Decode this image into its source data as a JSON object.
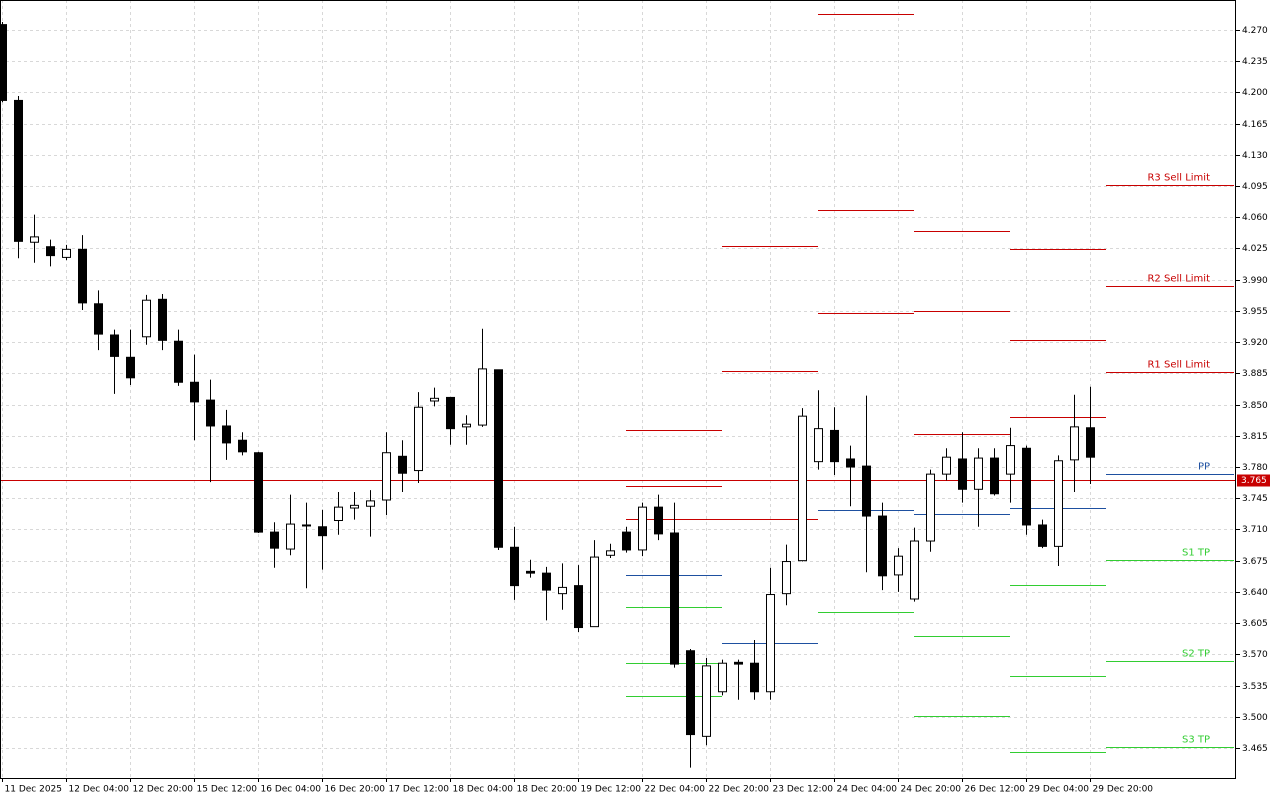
{
  "chart_data": {
    "type": "candlestick",
    "categories": [
      "11 Dec 2025",
      null,
      null,
      null,
      "12 Dec 04:00",
      null,
      null,
      null,
      "12 Dec 20:00",
      null,
      null,
      null,
      "15 Dec 12:00",
      null,
      null,
      null,
      "16 Dec 04:00",
      null,
      null,
      null,
      "16 Dec 20:00",
      null,
      null,
      null,
      "17 Dec 12:00",
      null,
      null,
      null,
      "18 Dec 04:00",
      null,
      null,
      null,
      "18 Dec 20:00",
      null,
      null,
      null,
      "19 Dec 12:00",
      null,
      null,
      null,
      "22 Dec 04:00",
      null,
      null,
      null,
      "22 Dec 20:00",
      null,
      null,
      null,
      "23 Dec 12:00",
      null,
      null,
      null,
      "24 Dec 04:00",
      null,
      null,
      null,
      "24 Dec 20:00",
      null,
      null,
      null,
      "26 Dec 12:00",
      null,
      null,
      null,
      "29 Dec 04:00",
      null,
      null,
      null,
      "29 Dec 20:00"
    ],
    "open": [
      4.276,
      4.191,
      4.032,
      4.027,
      4.015,
      4.024,
      3.963,
      3.928,
      3.903,
      3.926,
      3.968,
      3.921,
      3.875,
      3.855,
      3.826,
      3.81,
      3.796,
      3.707,
      3.688,
      3.715,
      3.713,
      3.72,
      3.734,
      3.736,
      3.743,
      3.792,
      3.776,
      3.854,
      3.858,
      3.825,
      3.827,
      3.889,
      3.69,
      3.663,
      3.661,
      3.638,
      3.647,
      3.601,
      3.681,
      3.707,
      3.687,
      3.735,
      3.706,
      3.574,
      3.478,
      3.528,
      3.561,
      3.56,
      3.528,
      3.638,
      3.675,
      3.786,
      3.821,
      3.789,
      3.781,
      3.725,
      3.659,
      3.632,
      3.697,
      3.772,
      3.789,
      3.755,
      3.79,
      3.772,
      3.801,
      3.715,
      3.691,
      3.788,
      3.824
    ],
    "high": [
      4.279,
      4.196,
      4.063,
      4.035,
      4.029,
      4.04,
      3.978,
      3.934,
      3.934,
      3.973,
      3.974,
      3.934,
      3.906,
      3.878,
      3.844,
      3.819,
      3.797,
      3.718,
      3.749,
      3.74,
      3.732,
      3.752,
      3.752,
      3.754,
      3.819,
      3.81,
      3.864,
      3.869,
      3.858,
      3.838,
      3.935,
      3.889,
      3.713,
      3.676,
      3.668,
      3.672,
      3.67,
      3.698,
      3.694,
      3.713,
      3.74,
      3.749,
      3.74,
      3.576,
      3.566,
      3.564,
      3.564,
      3.586,
      3.667,
      3.693,
      3.846,
      3.866,
      3.847,
      3.804,
      3.86,
      3.74,
      3.689,
      3.712,
      3.777,
      3.801,
      3.819,
      3.801,
      3.801,
      3.824,
      3.804,
      3.721,
      3.793,
      3.861,
      3.87
    ],
    "low": [
      4.189,
      4.014,
      4.009,
      4.005,
      4.012,
      3.956,
      3.911,
      3.862,
      3.872,
      3.917,
      3.911,
      3.871,
      3.81,
      3.763,
      3.788,
      3.793,
      3.706,
      3.667,
      3.681,
      3.644,
      3.665,
      3.704,
      3.721,
      3.702,
      3.726,
      3.752,
      3.762,
      3.848,
      3.805,
      3.805,
      3.825,
      3.687,
      3.631,
      3.656,
      3.608,
      3.62,
      3.595,
      3.601,
      3.678,
      3.684,
      3.68,
      3.698,
      3.555,
      3.443,
      3.468,
      3.524,
      3.519,
      3.519,
      3.519,
      3.625,
      3.674,
      3.777,
      3.771,
      3.736,
      3.662,
      3.642,
      3.64,
      3.629,
      3.685,
      3.765,
      3.74,
      3.713,
      3.748,
      3.74,
      3.704,
      3.689,
      3.669,
      3.752,
      3.761
    ],
    "close": [
      4.191,
      4.033,
      4.038,
      4.017,
      4.024,
      3.964,
      3.929,
      3.904,
      3.88,
      3.967,
      3.922,
      3.875,
      3.853,
      3.826,
      3.807,
      3.797,
      3.707,
      3.689,
      3.716,
      3.714,
      3.703,
      3.735,
      3.737,
      3.742,
      3.796,
      3.773,
      3.847,
      3.857,
      3.823,
      3.828,
      3.89,
      3.69,
      3.647,
      3.661,
      3.642,
      3.645,
      3.6,
      3.679,
      3.686,
      3.687,
      3.735,
      3.705,
      3.559,
      3.48,
      3.557,
      3.56,
      3.559,
      3.528,
      3.637,
      3.674,
      3.837,
      3.823,
      3.786,
      3.78,
      3.725,
      3.658,
      3.68,
      3.697,
      3.772,
      3.791,
      3.755,
      3.79,
      3.75,
      3.804,
      3.715,
      3.691,
      3.787,
      3.825,
      3.791
    ],
    "up_color": "#ffffff",
    "down_color": "#000000",
    "levels_start_index": 39,
    "levels_period": 6,
    "levels": [
      {
        "name": "R3 Sell Limit",
        "color": "#c80000",
        "values": [
          3.821,
          4.028,
          4.288,
          4.045,
          4.024,
          4.096
        ]
      },
      {
        "name": "R2 Sell Limit",
        "color": "#c80000",
        "values": [
          3.759,
          3.888,
          4.068,
          3.955,
          3.922,
          3.983
        ]
      },
      {
        "name": "R1 Sell Limit",
        "color": "#c80000",
        "values": [
          3.722,
          3.722,
          3.953,
          3.817,
          3.836,
          3.887
        ]
      },
      {
        "name": "PP",
        "color": "#1e50a0",
        "values": [
          3.659,
          3.583,
          3.732,
          3.727,
          3.734,
          3.772
        ]
      },
      {
        "name": "S1 TP",
        "color": "#32cd32",
        "values": [
          3.623,
          null,
          3.617,
          3.591,
          3.648,
          3.676
        ]
      },
      {
        "name": "S2 TP",
        "color": "#32cd32",
        "values": [
          3.56,
          null,
          null,
          3.501,
          3.546,
          3.563
        ]
      },
      {
        "name": "S3 TP",
        "color": "#32cd32",
        "values": [
          3.523,
          null,
          null,
          null,
          3.46,
          3.466
        ]
      }
    ],
    "current_price": 3.765,
    "current_price_color": "#c80000",
    "ylim": [
      3.4313,
      4.3036
    ],
    "yticks": [
      {
        "value": 4.27,
        "label": "4.270"
      },
      {
        "value": 4.235,
        "label": "4.235"
      },
      {
        "value": 4.2,
        "label": "4.200"
      },
      {
        "value": 4.165,
        "label": "4.165"
      },
      {
        "value": 4.13,
        "label": "4.130"
      },
      {
        "value": 4.095,
        "label": "4.095"
      },
      {
        "value": 4.06,
        "label": "4.060"
      },
      {
        "value": 4.025,
        "label": "4.025"
      },
      {
        "value": 3.99,
        "label": "3.990"
      },
      {
        "value": 3.955,
        "label": "3.955"
      },
      {
        "value": 3.92,
        "label": "3.920"
      },
      {
        "value": 3.885,
        "label": "3.885"
      },
      {
        "value": 3.85,
        "label": "3.850"
      },
      {
        "value": 3.815,
        "label": "3.815"
      },
      {
        "value": 3.78,
        "label": "3.780"
      },
      {
        "value": 3.745,
        "label": "3.745"
      },
      {
        "value": 3.71,
        "label": "3.710"
      },
      {
        "value": 3.675,
        "label": "3.675"
      },
      {
        "value": 3.64,
        "label": "3.640"
      },
      {
        "value": 3.605,
        "label": "3.605"
      },
      {
        "value": 3.57,
        "label": "3.570"
      },
      {
        "value": 3.535,
        "label": "3.535"
      },
      {
        "value": 3.5,
        "label": "3.500"
      },
      {
        "value": 3.465,
        "label": "3.465"
      }
    ],
    "grid": true
  }
}
